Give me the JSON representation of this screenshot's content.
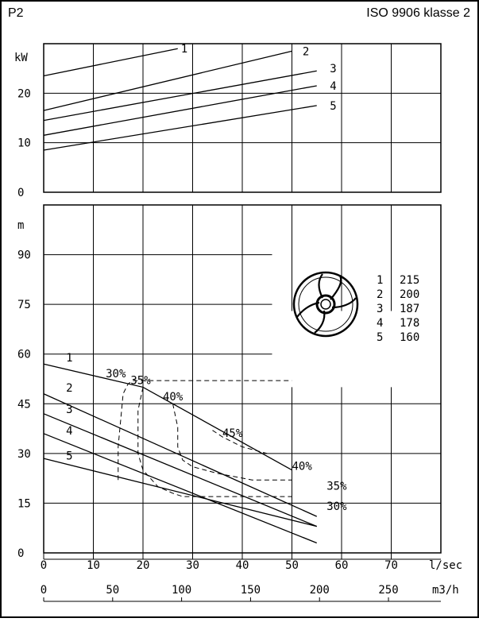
{
  "header": {
    "left": "P2",
    "right": "ISO 9906 klasse 2"
  },
  "chart_data": [
    {
      "type": "line",
      "title": "",
      "ylabel": "kW",
      "xunit": "l/sec",
      "xlim": [
        0,
        80
      ],
      "ylim": [
        0,
        30
      ],
      "yticks": [
        0,
        10,
        20
      ],
      "grid": true,
      "series": [
        {
          "name": "1",
          "x": [
            0,
            27
          ],
          "y": [
            23.5,
            29
          ]
        },
        {
          "name": "2",
          "x": [
            0,
            50
          ],
          "y": [
            16.5,
            28.5
          ]
        },
        {
          "name": "3",
          "x": [
            0,
            55
          ],
          "y": [
            14.5,
            24.5
          ]
        },
        {
          "name": "4",
          "x": [
            0,
            55
          ],
          "y": [
            11.5,
            21.5
          ]
        },
        {
          "name": "5",
          "x": [
            0,
            55
          ],
          "y": [
            8.5,
            17.5
          ]
        }
      ],
      "curve_labels": [
        {
          "text": "1",
          "x": 27,
          "y": 29
        },
        {
          "text": "2",
          "x": 51.5,
          "y": 28.5
        },
        {
          "text": "3",
          "x": 57,
          "y": 25
        },
        {
          "text": "4",
          "x": 57,
          "y": 21.5
        },
        {
          "text": "5",
          "x": 57,
          "y": 17.5
        }
      ]
    },
    {
      "type": "line",
      "title": "",
      "ylabel": "m",
      "xlabel_primary": "l/sec",
      "xlabel_secondary": "m3/h",
      "xlim": [
        0,
        80
      ],
      "ylim": [
        0,
        105
      ],
      "yticks": [
        0,
        15,
        30,
        45,
        60,
        75,
        90
      ],
      "xticks": [
        0,
        10,
        20,
        30,
        40,
        50,
        60,
        70
      ],
      "xticks_secondary": [
        0,
        50,
        100,
        150,
        200,
        250
      ],
      "grid": true,
      "series": [
        {
          "name": "1",
          "x": [
            0,
            20,
            50
          ],
          "y": [
            57,
            50,
            25
          ]
        },
        {
          "name": "2",
          "x": [
            0,
            55
          ],
          "y": [
            48,
            11
          ]
        },
        {
          "name": "3",
          "x": [
            0,
            55
          ],
          "y": [
            42,
            8
          ]
        },
        {
          "name": "4",
          "x": [
            0,
            55
          ],
          "y": [
            36,
            3
          ]
        },
        {
          "name": "5",
          "x": [
            0,
            55
          ],
          "y": [
            28.5,
            8
          ]
        }
      ],
      "curve_labels": [
        {
          "text": "1",
          "x": 4.5,
          "y": 57
        },
        {
          "text": "2",
          "x": 4.5,
          "y": 48
        },
        {
          "text": "3",
          "x": 4.5,
          "y": 41.5
        },
        {
          "text": "4",
          "x": 4.5,
          "y": 35
        },
        {
          "text": "5",
          "x": 4.5,
          "y": 27.5
        }
      ],
      "efficiency_contours": [
        {
          "name": "30%",
          "x": [
            15,
            15,
            16,
            17,
            18,
            50
          ],
          "y": [
            22,
            32,
            48,
            51,
            52,
            52
          ]
        },
        {
          "name": "35%",
          "x": [
            20,
            19,
            19,
            20,
            23,
            26,
            28,
            50
          ],
          "y": [
            50,
            43,
            30,
            25,
            20,
            18,
            17,
            17
          ]
        },
        {
          "name": "40%",
          "x": [
            26,
            27,
            27,
            28,
            30,
            35,
            42,
            50
          ],
          "y": [
            45,
            38,
            32,
            28,
            26,
            24,
            22,
            22
          ]
        },
        {
          "name": "45%",
          "x": [
            34,
            36,
            40,
            45
          ],
          "y": [
            37,
            35,
            32,
            30
          ]
        }
      ],
      "efficiency_labels": [
        {
          "text": "30%",
          "x": 12.5,
          "y": 53
        },
        {
          "text": "35%",
          "x": 17.5,
          "y": 51
        },
        {
          "text": "40%",
          "x": 24,
          "y": 46
        },
        {
          "text": "45%",
          "x": 36,
          "y": 35
        },
        {
          "text": "40%",
          "x": 50,
          "y": 25
        },
        {
          "text": "35%",
          "x": 57,
          "y": 19
        },
        {
          "text": "30%",
          "x": 57,
          "y": 13
        }
      ]
    }
  ],
  "impeller_legend": {
    "items": [
      {
        "id": "1",
        "value": "215"
      },
      {
        "id": "2",
        "value": "200"
      },
      {
        "id": "3",
        "value": "187"
      },
      {
        "id": "4",
        "value": "178"
      },
      {
        "id": "5",
        "value": "160"
      }
    ],
    "icon": "impeller-icon"
  }
}
